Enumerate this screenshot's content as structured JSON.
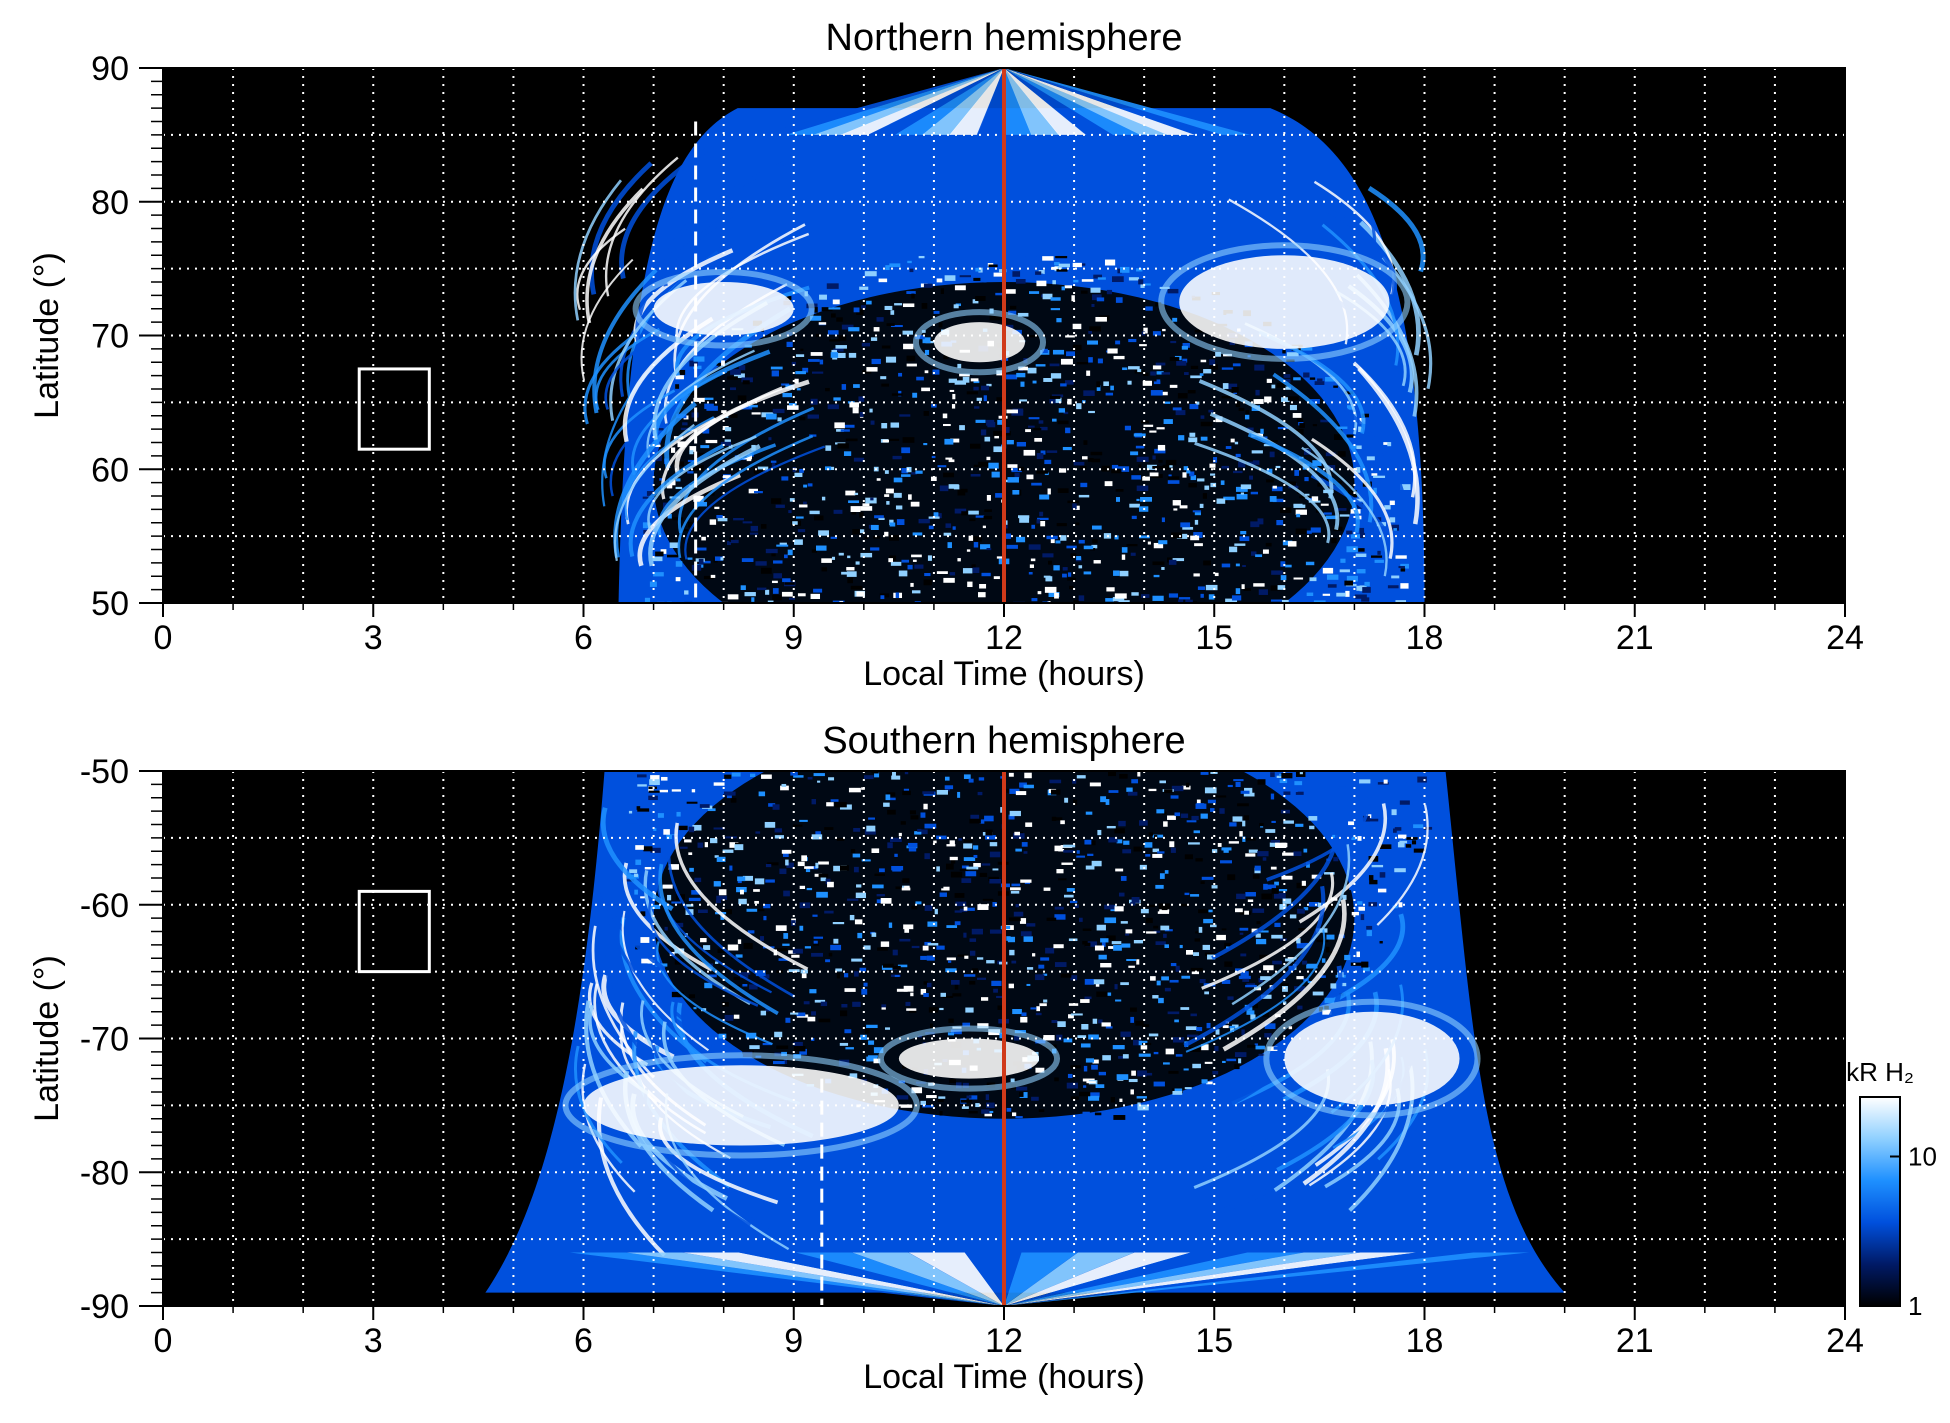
{
  "figure": {
    "colorbar": {
      "label": "kR H₂",
      "scale": "log",
      "range": [
        1,
        25
      ],
      "ticks": [
        "1",
        "10"
      ],
      "colors": [
        "#000000",
        "#001a66",
        "#0050dd",
        "#1e90ff",
        "#8fd0ff",
        "#ffffff"
      ]
    },
    "marker_colors": {
      "noon_line": "#d03a1a",
      "dashed_line": "#ffffff",
      "box": "#ffffff"
    }
  },
  "chart_data": [
    {
      "type": "heatmap",
      "title": "Northern hemisphere",
      "xlabel": "Local Time (hours)",
      "ylabel": "Latitude (°)",
      "xlim": [
        0,
        24
      ],
      "ylim": [
        50,
        90
      ],
      "xticks": [
        "0",
        "3",
        "6",
        "9",
        "12",
        "15",
        "18",
        "21",
        "24"
      ],
      "yticks": [
        "50",
        "60",
        "70",
        "80",
        "90"
      ],
      "grid": true,
      "noon_line_lt": 12,
      "dashed_line_lt": 7.6,
      "box": {
        "lt": [
          2.8,
          3.8
        ],
        "lat": [
          61.5,
          67.5
        ]
      },
      "coverage": {
        "lt_min_at_equatorward_edge": 6.5,
        "lt_max_at_equatorward_edge": 18.0,
        "lat_max": 87
      },
      "bright_features": [
        {
          "lt": [
            7.0,
            9.0
          ],
          "lat": [
            70,
            74
          ],
          "level": "white"
        },
        {
          "lt": [
            11.0,
            12.3
          ],
          "lat": [
            68,
            71
          ],
          "level": "white"
        },
        {
          "lt": [
            14.5,
            17.5
          ],
          "lat": [
            69,
            76
          ],
          "level": "white"
        }
      ]
    },
    {
      "type": "heatmap",
      "title": "Southern hemisphere",
      "xlabel": "Local Time (hours)",
      "ylabel": "Latitude (°)",
      "xlim": [
        0,
        24
      ],
      "ylim": [
        -90,
        -50
      ],
      "xticks": [
        "0",
        "3",
        "6",
        "9",
        "12",
        "15",
        "18",
        "21",
        "24"
      ],
      "yticks": [
        "-50",
        "-60",
        "-70",
        "-80",
        "-90"
      ],
      "grid": true,
      "noon_line_lt": 12,
      "dashed_line_lt": 9.4,
      "box": {
        "lt": [
          2.8,
          3.8
        ],
        "lat": [
          -65,
          -59
        ]
      },
      "coverage": {
        "lt_min_at_equatorward_edge": 6.3,
        "lt_max_at_equatorward_edge": 18.3,
        "lat_min": -89
      },
      "bright_features": [
        {
          "lt": [
            6.0,
            10.5
          ],
          "lat": [
            -78,
            -72
          ],
          "level": "white"
        },
        {
          "lt": [
            10.5,
            12.5
          ],
          "lat": [
            -73,
            -70
          ],
          "level": "white"
        },
        {
          "lt": [
            16.0,
            18.5
          ],
          "lat": [
            -75,
            -68
          ],
          "level": "white"
        }
      ]
    }
  ]
}
